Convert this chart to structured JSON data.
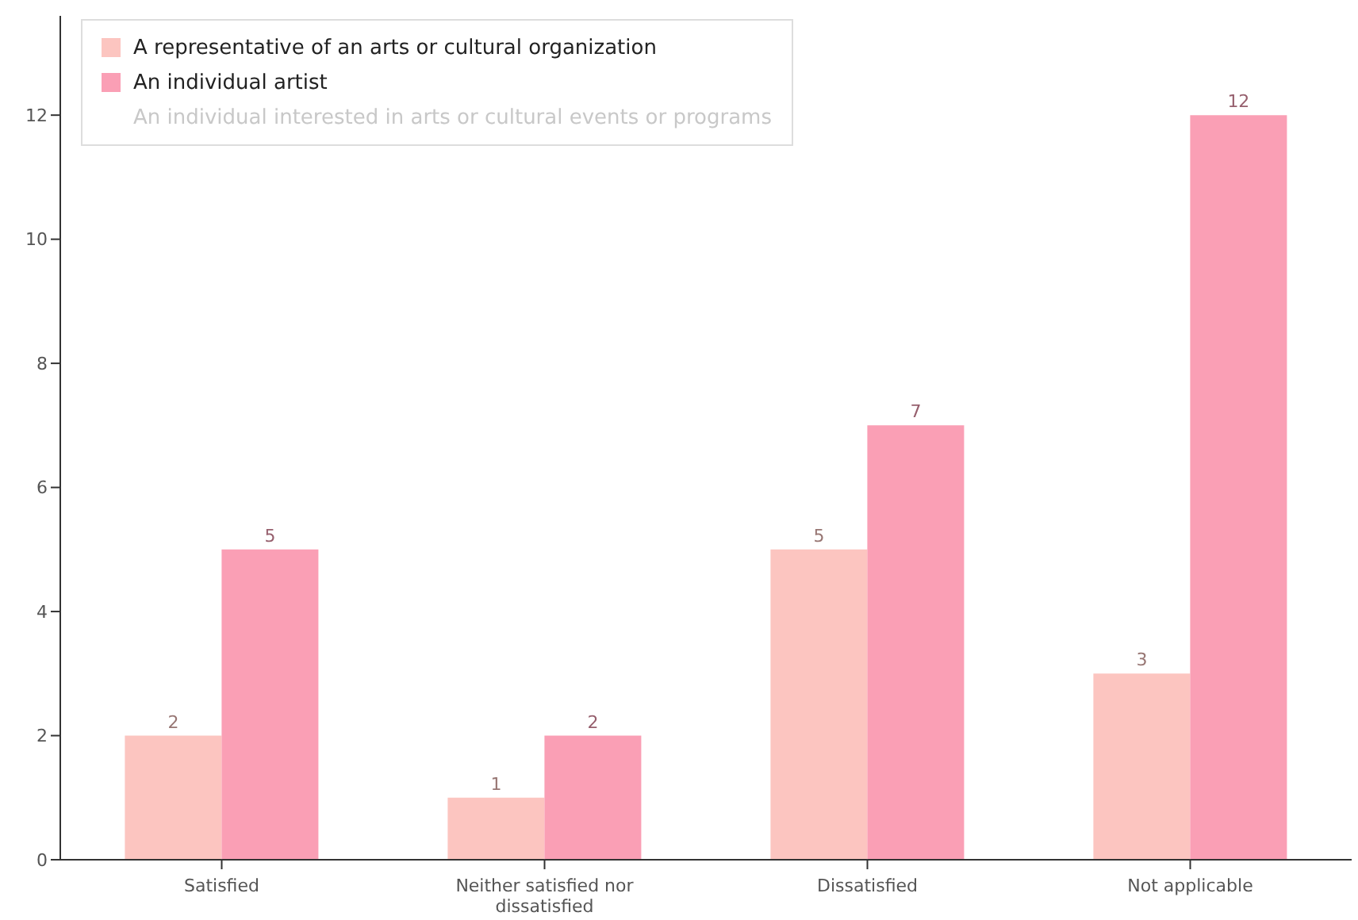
{
  "chart_data": {
    "type": "bar",
    "categories": [
      "Satisfied",
      "Neither satisfied nor dissatisfied",
      "Dissatisfied",
      "Not applicable"
    ],
    "series": [
      {
        "name": "A representative of an arts or cultural organization",
        "color": "#fcc5c0",
        "values": [
          2,
          1,
          5,
          3
        ]
      },
      {
        "name": "An individual artist",
        "color": "#fa9fb5",
        "values": [
          5,
          2,
          7,
          12
        ]
      },
      {
        "name": "An individual interested in arts or cultural events or programs",
        "color": "#c8c8c8",
        "values": [
          null,
          null,
          null,
          null
        ]
      }
    ],
    "ylim": [
      0,
      13.6
    ],
    "yticks": [
      0,
      2,
      4,
      6,
      8,
      10,
      12
    ],
    "legend": "top left",
    "data_labels": true
  }
}
